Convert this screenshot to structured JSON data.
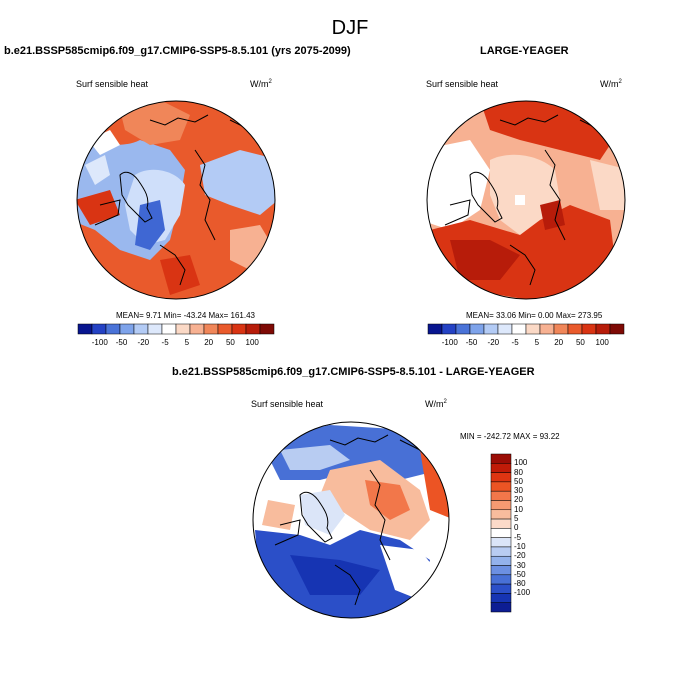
{
  "figure": {
    "title": "DJF"
  },
  "panels": [
    {
      "title": "b.e21.BSSP585cmip6.f09_g17.CMIP6-SSP5-8.5.101 (yrs 2075-2099)",
      "variable": "Surf sensible heat",
      "units": "W/m",
      "units_sup": "2",
      "stats": "MEAN=   9.71  Min= -43.24  Max= 161.43"
    },
    {
      "title": "LARGE-YEAGER",
      "variable": "Surf sensible heat",
      "units": "W/m",
      "units_sup": "2",
      "stats": "MEAN=  33.06  Min=   0.00  Max= 273.95"
    },
    {
      "title": "b.e21.BSSP585cmip6.f09_g17.CMIP6-SSP5-8.5.101 - LARGE-YEAGER",
      "variable": "Surf sensible heat",
      "units": "W/m",
      "units_sup": "2",
      "stats": "MIN = -242.72 MAX =  93.22"
    }
  ],
  "horizontal_colorbar": {
    "labels": [
      "-100",
      "-50",
      "-20",
      "-5",
      "5",
      "20",
      "50",
      "100"
    ],
    "colors": [
      "#08158f",
      "#2442c4",
      "#4a73d8",
      "#7ea3ea",
      "#b3cbf5",
      "#dde8fb",
      "#ffffff",
      "#fbd9c6",
      "#f7b192",
      "#f08659",
      "#e95a2c",
      "#d93413",
      "#b71c0a",
      "#7e0a05"
    ]
  },
  "vertical_colorbar": {
    "labels": [
      "100",
      "80",
      "50",
      "30",
      "20",
      "10",
      "5",
      "0",
      "-5",
      "-10",
      "-20",
      "-30",
      "-50",
      "-80",
      "-100"
    ],
    "colors": [
      "#9b0d06",
      "#c01b08",
      "#de3512",
      "#ec5424",
      "#f2774a",
      "#f59a72",
      "#f8bc9d",
      "#fbdac9",
      "#ffffff",
      "#dbe5f8",
      "#b8ccf2",
      "#93b2ec",
      "#6c90e2",
      "#4870d6",
      "#2b4fc8",
      "#1634b3",
      "#0d1d93"
    ]
  }
}
